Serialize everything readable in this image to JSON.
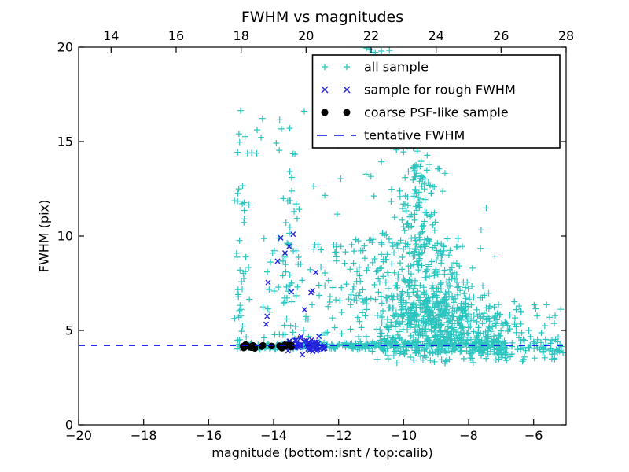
{
  "chart_data": {
    "type": "scatter",
    "title": "FWHM vs magnitudes",
    "xlabel": "magnitude (bottom:isnt / top:calib)",
    "ylabel": "FWHM (pix)",
    "xlim": [
      -20,
      -5
    ],
    "ylim": [
      0,
      20
    ],
    "grid": false,
    "x_ticks": [
      -20,
      -18,
      -16,
      -14,
      -12,
      -10,
      -8,
      -6
    ],
    "x_tick_labels": [
      "−20",
      "−18",
      "−16",
      "−14",
      "−12",
      "−10",
      "−8",
      "−6"
    ],
    "top_axis": {
      "lim": [
        13,
        28
      ],
      "ticks": [
        14,
        16,
        18,
        20,
        22,
        24,
        26,
        28
      ],
      "tick_labels": [
        "14",
        "16",
        "18",
        "20",
        "22",
        "24",
        "26",
        "28"
      ]
    },
    "y_ticks": [
      0,
      5,
      10,
      15,
      20
    ],
    "y_tick_labels": [
      "0",
      "5",
      "10",
      "15",
      "20"
    ],
    "tentative_fwhm": 4.2,
    "legend": {
      "position": "upper-right",
      "entries": [
        {
          "label": "all sample",
          "marker": "plus",
          "color": "#2bc4bf"
        },
        {
          "label": "sample for rough FWHM",
          "marker": "x",
          "color": "#2424dd"
        },
        {
          "label": "coarse PSF-like sample",
          "marker": "dot",
          "color": "#000000"
        },
        {
          "label": "tentative FWHM",
          "marker": "dashed-line",
          "color": "#0c0cee"
        }
      ]
    },
    "series": [
      {
        "name": "all sample",
        "marker": "plus",
        "color": "#2bc4bf",
        "clusters": [
          {
            "n": 95,
            "x": [
              "u",
              -15.12,
              -12.42
            ],
            "y": [
              "g",
              4.17,
              0.09
            ]
          },
          {
            "n": 85,
            "x": [
              "u",
              -12.45,
              -10.65
            ],
            "y": [
              "g",
              4.17,
              0.1
            ]
          },
          {
            "n": 300,
            "x": [
              "u",
              -10.75,
              -6.85
            ],
            "y": [
              "g",
              4.18,
              0.26
            ]
          },
          {
            "n": 45,
            "x": [
              "u",
              -6.9,
              -5.03
            ],
            "y": [
              "g",
              4.2,
              0.3
            ]
          },
          {
            "n": 45,
            "x": [
              "u",
              -10.9,
              -5.3
            ],
            "y": [
              "u",
              3.25,
              3.9
            ]
          },
          {
            "n": 26,
            "x": [
              "g",
              -15.03,
              0.1
            ],
            "y": [
              "u",
              4.4,
              10.3
            ]
          },
          {
            "n": 17,
            "x": [
              "g",
              -14.93,
              0.11
            ],
            "y": [
              "u",
              10.3,
              19.5
            ]
          },
          {
            "n": 24,
            "x": [
              "g",
              -13.52,
              0.16
            ],
            "y": [
              "u",
              4.6,
              11.2
            ]
          },
          {
            "n": 10,
            "x": [
              "g",
              -13.42,
              0.13
            ],
            "y": [
              "u",
              11.2,
              13.8
            ]
          },
          {
            "n": 7,
            "x": [
              "g",
              -13.55,
              0.16
            ],
            "y": [
              "u",
              14.2,
              16.2
            ]
          },
          {
            "n": 5,
            "x": [
              "u",
              -14.85,
              -14.3
            ],
            "y": [
              "u",
              14.3,
              16.6
            ]
          },
          {
            "n": 75,
            "x": [
              "u",
              -14.4,
              -11.55
            ],
            "y": [
              "u",
              4.55,
              9.9
            ]
          },
          {
            "n": 8,
            "x": [
              "u",
              -13.15,
              -11.35
            ],
            "y": [
              "u",
              10.0,
              16.7
            ]
          },
          {
            "n": 95,
            "x": [
              "g",
              -9.55,
              0.38
            ],
            "y": [
              "g",
              11.8,
              1.3,
              9.9,
              14.75
            ]
          },
          {
            "n": 160,
            "x": [
              "g",
              -9.35,
              0.78
            ],
            "y": [
              "u",
              7.35,
              9.95
            ]
          },
          {
            "n": 440,
            "x": [
              "g",
              -8.95,
              0.88
            ],
            "y": [
              "g",
              5.7,
              1.0,
              4.3,
              7.4
            ]
          },
          {
            "n": 55,
            "x": [
              "u",
              -11.65,
              -10.35
            ],
            "y": [
              "u",
              4.5,
              10.5
            ]
          },
          {
            "n": 50,
            "x": [
              "u",
              -7.85,
              -6.35
            ],
            "y": [
              "u",
              3.8,
              6.4
            ]
          },
          {
            "n": 24,
            "x": [
              "u",
              -6.45,
              -5.05
            ],
            "y": [
              "u",
              3.45,
              6.5
            ]
          },
          {
            "n": 14,
            "x": [
              "u",
              -11.35,
              -8.05
            ],
            "y": [
              "u",
              12.0,
              15.0
            ]
          },
          {
            "n": 3,
            "x": [
              "u",
              -8.3,
              -6.9
            ],
            "y": [
              "u",
              8.6,
              13.2
            ]
          },
          {
            "n": 6,
            "x": [
              "u",
              -11.9,
              -9.3
            ],
            "y": [
              "u",
              19.7,
              19.95
            ]
          }
        ]
      },
      {
        "name": "sample for rough FWHM",
        "marker": "x",
        "color": "#2424dd",
        "points": [
          [
            -14.23,
            5.33
          ],
          [
            -14.2,
            5.75
          ],
          [
            -14.17,
            7.54
          ],
          [
            -13.88,
            8.67
          ],
          [
            -13.78,
            9.9
          ],
          [
            -13.65,
            9.1
          ],
          [
            -13.52,
            9.45
          ],
          [
            -13.45,
            7.04
          ],
          [
            -13.4,
            10.1
          ],
          [
            -13.15,
            4.67
          ],
          [
            -13.05,
            6.1
          ],
          [
            -12.85,
            7.0
          ],
          [
            -12.8,
            7.1
          ],
          [
            -12.7,
            8.08
          ]
        ],
        "clusters": [
          {
            "n": 75,
            "x": [
              "u",
              -13.68,
              -12.42
            ],
            "y": [
              "g",
              4.17,
              0.17
            ]
          }
        ]
      },
      {
        "name": "coarse PSF-like sample",
        "marker": "dot",
        "color": "#000000",
        "clusters": [
          {
            "n": 26,
            "x": [
              "u",
              -15.07,
              -13.45
            ],
            "y": [
              "g",
              4.16,
              0.045
            ]
          }
        ]
      },
      {
        "name": "tentative FWHM",
        "marker": "dashed-line",
        "color": "#0c0cee",
        "y": 4.2
      }
    ]
  }
}
